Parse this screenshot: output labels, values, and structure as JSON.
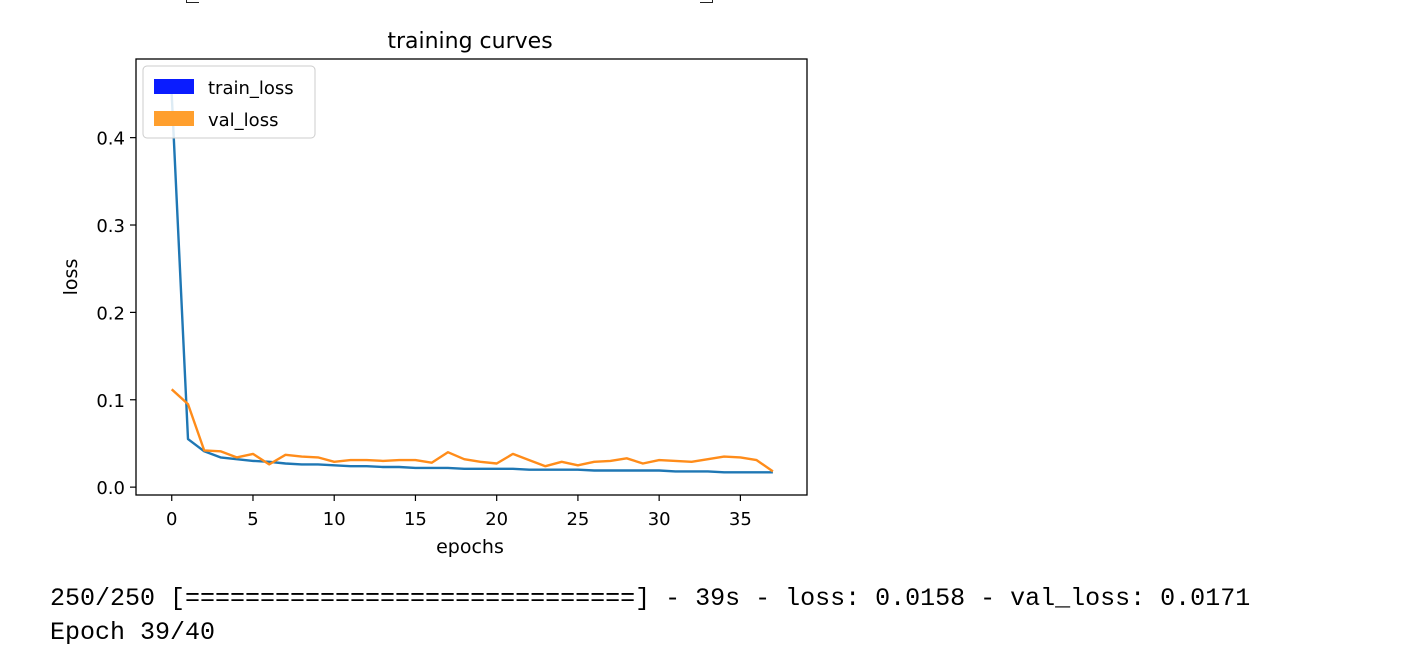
{
  "chart_data": {
    "type": "line",
    "title": "training curves",
    "xlabel": "epochs",
    "ylabel": "loss",
    "xlim": [
      -2.2,
      39.1
    ],
    "ylim": [
      -0.009,
      0.49
    ],
    "xticks": [
      0,
      5,
      10,
      15,
      20,
      25,
      30,
      35
    ],
    "yticks": [
      0.0,
      0.1,
      0.2,
      0.3,
      0.4
    ],
    "ytick_labels": [
      "0.0",
      "0.1",
      "0.2",
      "0.3",
      "0.4"
    ],
    "grid": false,
    "legend": "upper-left",
    "x": [
      0,
      1,
      2,
      3,
      4,
      5,
      6,
      7,
      8,
      9,
      10,
      11,
      12,
      13,
      14,
      15,
      16,
      17,
      18,
      19,
      20,
      21,
      22,
      23,
      24,
      25,
      26,
      27,
      28,
      29,
      30,
      31,
      32,
      33,
      34,
      35,
      36,
      37
    ],
    "series": [
      {
        "name": "train_loss",
        "color": "#1f77b4",
        "legend_color": "#0a1cff",
        "values": [
          0.45,
          0.055,
          0.041,
          0.034,
          0.032,
          0.03,
          0.029,
          0.027,
          0.026,
          0.026,
          0.025,
          0.024,
          0.024,
          0.023,
          0.023,
          0.022,
          0.022,
          0.022,
          0.021,
          0.021,
          0.021,
          0.021,
          0.02,
          0.02,
          0.02,
          0.02,
          0.019,
          0.019,
          0.019,
          0.019,
          0.019,
          0.018,
          0.018,
          0.018,
          0.017,
          0.017,
          0.017,
          0.017
        ]
      },
      {
        "name": "val_loss",
        "color": "#ff8c1a",
        "legend_color": "#ff9f2e",
        "values": [
          0.112,
          0.095,
          0.042,
          0.041,
          0.034,
          0.038,
          0.026,
          0.037,
          0.035,
          0.034,
          0.029,
          0.031,
          0.031,
          0.03,
          0.031,
          0.031,
          0.028,
          0.04,
          0.032,
          0.029,
          0.027,
          0.038,
          0.031,
          0.024,
          0.029,
          0.025,
          0.029,
          0.03,
          0.033,
          0.027,
          0.031,
          0.03,
          0.029,
          0.032,
          0.035,
          0.034,
          0.031,
          0.018
        ]
      }
    ]
  },
  "log": {
    "line1": "250/250 [==============================] - 39s - loss: 0.0158 - val_loss: 0.0171",
    "line2": "Epoch 39/40"
  }
}
